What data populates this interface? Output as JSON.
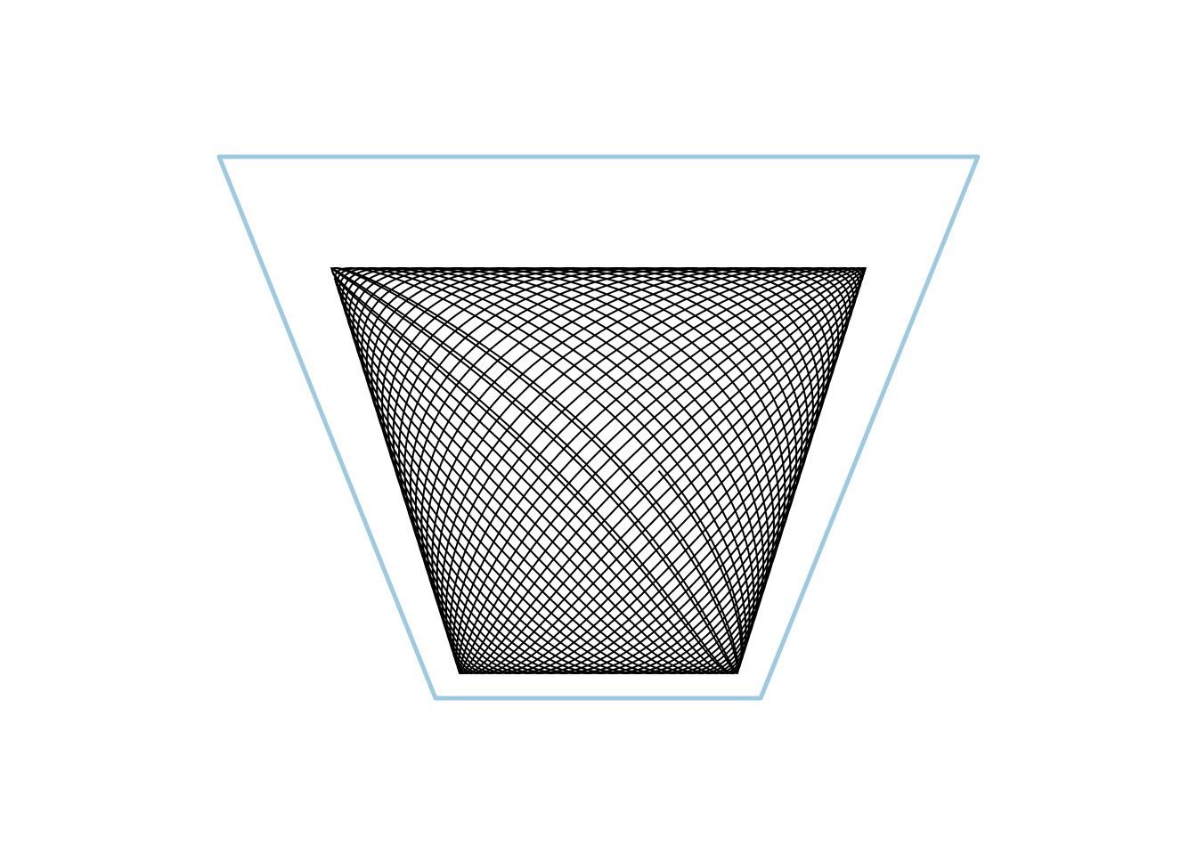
{
  "figure": {
    "description_type": "lissajous-trapezoid",
    "colors": {
      "background": "#ffffff",
      "frame": "#9ecae1",
      "curve": "#000000"
    },
    "curve": {
      "x_frequency": 1,
      "y_frequency": 1,
      "samples": 24000
    }
  }
}
